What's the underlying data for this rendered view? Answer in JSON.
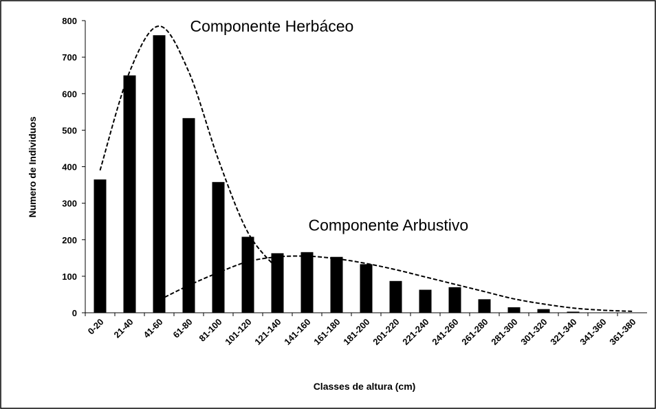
{
  "chart_data": {
    "type": "bar",
    "x_label": "Classes de altura (cm)",
    "y_label": "Numero de Individuos",
    "categories": [
      "0-20",
      "21-40",
      "41-60",
      "61-80",
      "81-100",
      "101-120",
      "121-140",
      "141-160",
      "161-180",
      "181-200",
      "201-220",
      "221-240",
      "241-260",
      "261-280",
      "281-300",
      "301-320",
      "321-340",
      "341-360",
      "361-380"
    ],
    "values": [
      365,
      650,
      760,
      533,
      358,
      208,
      163,
      166,
      153,
      133,
      87,
      63,
      70,
      37,
      15,
      10,
      3,
      0,
      0
    ],
    "color": "#000000",
    "ylim": [
      0,
      800
    ],
    "yticks": [
      0,
      100,
      200,
      300,
      400,
      500,
      600,
      700,
      800
    ],
    "grid": false,
    "curves": [
      {
        "values": [
          390,
          660,
          785,
          660,
          420,
          220,
          120,
          null,
          null,
          null,
          null,
          null,
          null,
          null,
          null,
          null,
          null,
          null,
          null
        ],
        "color": "#000000",
        "dashed": true
      },
      {
        "values": [
          null,
          null,
          35,
          75,
          110,
          140,
          153,
          155,
          148,
          135,
          118,
          98,
          78,
          58,
          38,
          24,
          13,
          7,
          4
        ],
        "color": "#000000",
        "dashed": true
      }
    ],
    "annotations": [
      {
        "text": "Componente Herbáceo",
        "category": 2,
        "value": 770
      },
      {
        "text": "Componente Arbustivo",
        "category": 6,
        "value": 225
      }
    ]
  }
}
